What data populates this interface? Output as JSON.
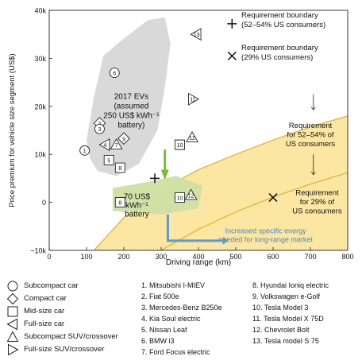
{
  "chart_data": {
    "type": "scatter",
    "xlabel": "Driving range (km)",
    "ylabel": "Price premium for vehicle size segment (US$)",
    "xlim": [
      0,
      800
    ],
    "ylim": [
      -10000,
      40000
    ],
    "x_ticks": [
      "0",
      "100",
      "200",
      "300",
      "400",
      "500",
      "600",
      "700",
      "800"
    ],
    "y_ticks": [
      "−10k",
      "0",
      "10k",
      "20k",
      "30k",
      "40k"
    ],
    "colors": {
      "cloud": "#d9d9d9",
      "yellow_region": "#fbe7a1",
      "green_cloud": "#cfe0a3",
      "green_arrow": "#7cba3a",
      "blue_arrow": "#5b9bd5",
      "boundary": "#e2b533"
    },
    "boundary_52_54": [
      [
        120,
        -10000
      ],
      [
        200,
        -3200
      ],
      [
        300,
        2600
      ],
      [
        400,
        6800
      ],
      [
        500,
        10000
      ],
      [
        600,
        13000
      ],
      [
        700,
        15700
      ],
      [
        800,
        18000
      ]
    ],
    "boundary_29": [
      [
        300,
        -10000
      ],
      [
        400,
        -5600
      ],
      [
        500,
        -2000
      ],
      [
        600,
        1100
      ],
      [
        700,
        3800
      ],
      [
        800,
        6200
      ]
    ],
    "cloud_label": [
      "2017 EVs",
      "(assumed",
      "250 US$ kWh⁻¹",
      "battery)"
    ],
    "battery70_label": [
      "70 US$",
      "kWh⁻¹",
      "battery"
    ],
    "req_52_label": [
      "Requirement",
      "for 52–54% of",
      "US consumers"
    ],
    "req_29_label": [
      "Requirement",
      "for 29% of",
      "US consumers"
    ],
    "increased_label": [
      "Increased specific energy",
      "needed for long-range market"
    ],
    "legend_req_plus": [
      "Requirement boundary",
      "(52–54% US consumers)"
    ],
    "legend_req_x": [
      "Requirement boundary",
      "(29% US consumers)"
    ],
    "plus_point": {
      "x": 283,
      "y": 5000
    },
    "x_point": {
      "x": 600,
      "y": 1000
    },
    "points_2017": [
      {
        "id": "1",
        "shape": "circle",
        "x": 95,
        "y": 10800
      },
      {
        "id": "2",
        "shape": "diamond",
        "x": 135,
        "y": 16500
      },
      {
        "id": "3",
        "shape": "circle",
        "x": 135,
        "y": 15300
      },
      {
        "id": "4",
        "shape": "tri-left",
        "x": 150,
        "y": 12000
      },
      {
        "id": "5",
        "shape": "square",
        "x": 160,
        "y": 8800
      },
      {
        "id": "6",
        "shape": "circle",
        "x": 175,
        "y": 27000
      },
      {
        "id": "7",
        "shape": "triangle",
        "x": 180,
        "y": 12000
      },
      {
        "id": "8",
        "shape": "square",
        "x": 190,
        "y": 7200
      },
      {
        "id": "9",
        "shape": "diamond",
        "x": 200,
        "y": 13300
      },
      {
        "id": "10",
        "shape": "square",
        "x": 350,
        "y": 12000
      },
      {
        "id": "11",
        "shape": "tri-right",
        "x": 385,
        "y": 21500
      },
      {
        "id": "12",
        "shape": "triangle",
        "x": 383,
        "y": 13500
      },
      {
        "id": "13",
        "shape": "tri-left",
        "x": 395,
        "y": 35000
      }
    ],
    "points_70": [
      {
        "id": "8",
        "shape": "square",
        "x": 190,
        "y": 0
      },
      {
        "id": "10",
        "shape": "square",
        "x": 350,
        "y": 1000
      },
      {
        "id": "12",
        "shape": "triangle",
        "x": 380,
        "y": 1500
      }
    ]
  },
  "legend_shapes": [
    {
      "shape": "circle",
      "label": "Subcompact car"
    },
    {
      "shape": "diamond",
      "label": "Compact car"
    },
    {
      "shape": "square",
      "label": "Mid-size car"
    },
    {
      "shape": "tri-left",
      "label": "Full-size car"
    },
    {
      "shape": "triangle",
      "label": "Subcompact SUV/crossover"
    },
    {
      "shape": "tri-right",
      "label": "Full-size SUV/crossover"
    }
  ],
  "legend_models_col1": [
    "1. Mitsubishi I-MIEV",
    "2. Fiat 500e",
    "3. Mercedes-Benz B250e",
    "4. Kia Soul electric",
    "5. Nissan Leaf",
    "6. BMW i3",
    "7. Ford Focus electric"
  ],
  "legend_models_col2": [
    "8. Hyundai Ioniq electric",
    "9. Volkswagen e-Golf",
    "10. Tesla Model 3",
    "11. Tesla Model X 75D",
    "12. Chevrolet Bolt",
    "13. Tesla model S 75"
  ]
}
